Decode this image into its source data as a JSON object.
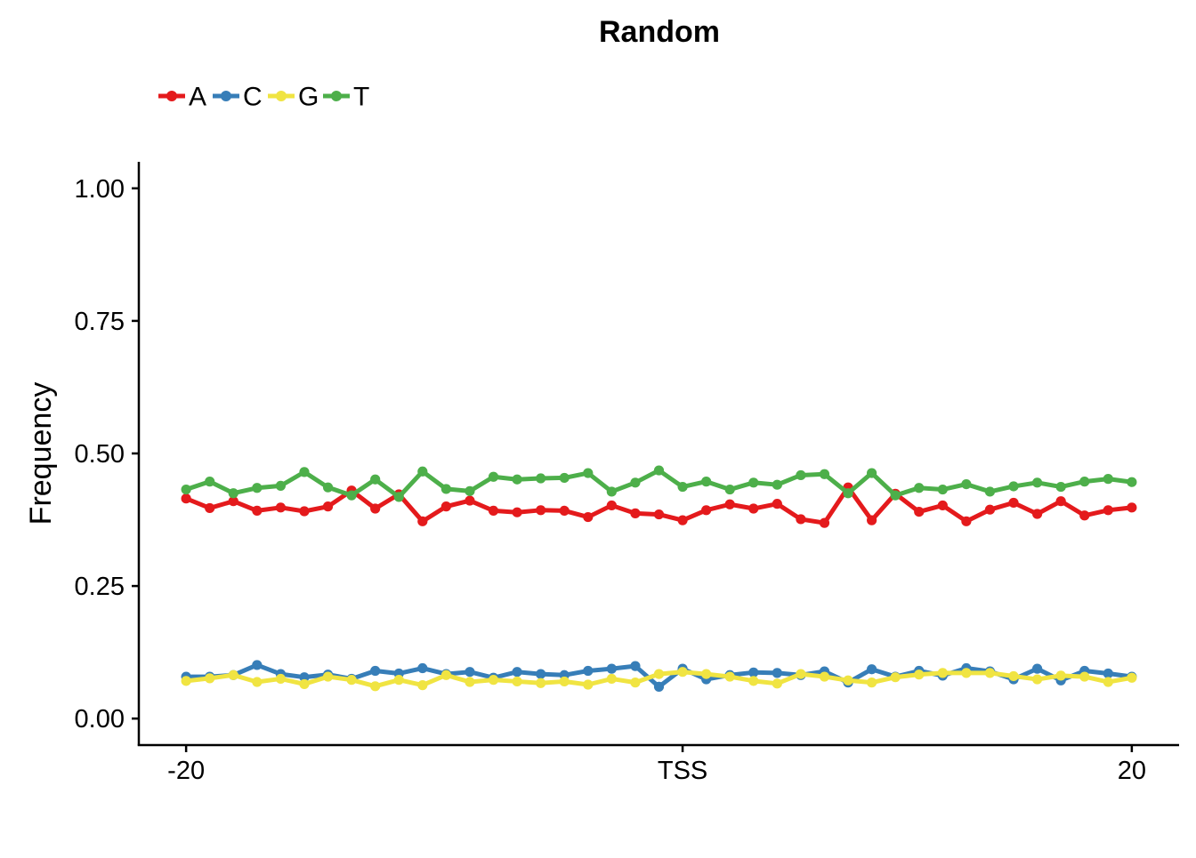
{
  "chart_data": {
    "type": "line",
    "title": "Random",
    "xlabel": "",
    "ylabel": "Frequency",
    "x": [
      -20,
      -19,
      -18,
      -17,
      -16,
      -15,
      -14,
      -13,
      -12,
      -11,
      -10,
      -9,
      -8,
      -7,
      -6,
      -5,
      -4,
      -3,
      -2,
      -1,
      0,
      1,
      2,
      3,
      4,
      5,
      6,
      7,
      8,
      9,
      10,
      11,
      12,
      13,
      14,
      15,
      16,
      17,
      18,
      19,
      20
    ],
    "xlim": [
      -22,
      22
    ],
    "ylim": [
      -0.05,
      1.05
    ],
    "x_ticks": [
      {
        "value": -20,
        "label": "-20"
      },
      {
        "value": 1,
        "label": "TSS"
      },
      {
        "value": 20,
        "label": "20"
      }
    ],
    "y_ticks": [
      {
        "value": 0,
        "label": "0.00"
      },
      {
        "value": 0.25,
        "label": "0.25"
      },
      {
        "value": 0.5,
        "label": "0.50"
      },
      {
        "value": 0.75,
        "label": "0.75"
      },
      {
        "value": 1.0,
        "label": "1.00"
      }
    ],
    "legend_position": "top-left",
    "grid": false,
    "series": [
      {
        "name": "A",
        "color": "#E41A1C",
        "values": [
          0.415,
          0.397,
          0.41,
          0.392,
          0.398,
          0.391,
          0.4,
          0.43,
          0.396,
          0.423,
          0.372,
          0.4,
          0.411,
          0.392,
          0.389,
          0.393,
          0.392,
          0.38,
          0.402,
          0.387,
          0.385,
          0.374,
          0.393,
          0.404,
          0.396,
          0.405,
          0.376,
          0.369,
          0.436,
          0.374,
          0.424,
          0.39,
          0.402,
          0.372,
          0.394,
          0.407,
          0.386,
          0.41,
          0.383,
          0.393,
          0.398
        ]
      },
      {
        "name": "C",
        "color": "#377EB8",
        "values": [
          0.079,
          0.079,
          0.082,
          0.101,
          0.084,
          0.078,
          0.083,
          0.075,
          0.09,
          0.085,
          0.095,
          0.084,
          0.088,
          0.077,
          0.088,
          0.084,
          0.082,
          0.09,
          0.094,
          0.099,
          0.06,
          0.094,
          0.074,
          0.082,
          0.087,
          0.086,
          0.082,
          0.089,
          0.068,
          0.093,
          0.079,
          0.09,
          0.081,
          0.095,
          0.089,
          0.074,
          0.094,
          0.072,
          0.09,
          0.085,
          0.079
        ]
      },
      {
        "name": "G",
        "color": "#F0E442",
        "values": [
          0.071,
          0.076,
          0.082,
          0.069,
          0.075,
          0.065,
          0.079,
          0.073,
          0.061,
          0.073,
          0.063,
          0.082,
          0.069,
          0.073,
          0.07,
          0.067,
          0.07,
          0.064,
          0.075,
          0.068,
          0.084,
          0.088,
          0.084,
          0.079,
          0.071,
          0.066,
          0.084,
          0.079,
          0.072,
          0.068,
          0.078,
          0.083,
          0.086,
          0.086,
          0.086,
          0.08,
          0.074,
          0.081,
          0.079,
          0.069,
          0.077
        ]
      },
      {
        "name": "T",
        "color": "#4DAF4A",
        "values": [
          0.432,
          0.447,
          0.425,
          0.435,
          0.439,
          0.465,
          0.436,
          0.421,
          0.451,
          0.418,
          0.466,
          0.433,
          0.429,
          0.456,
          0.451,
          0.453,
          0.454,
          0.463,
          0.428,
          0.445,
          0.468,
          0.437,
          0.447,
          0.432,
          0.445,
          0.441,
          0.459,
          0.461,
          0.425,
          0.463,
          0.421,
          0.435,
          0.432,
          0.442,
          0.428,
          0.438,
          0.445,
          0.437,
          0.447,
          0.452,
          0.446
        ]
      }
    ]
  }
}
